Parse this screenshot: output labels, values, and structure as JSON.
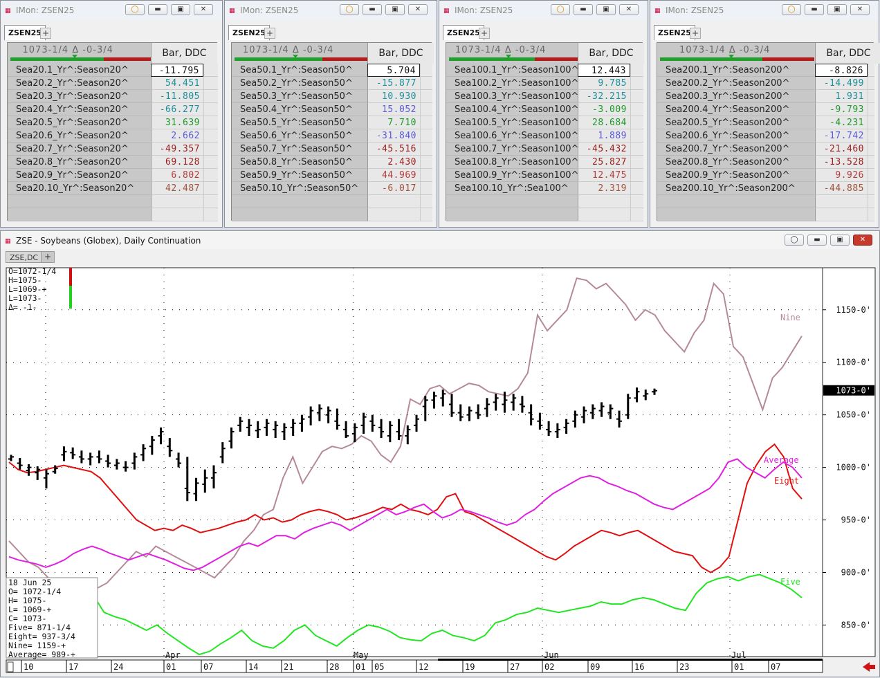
{
  "monitors": [
    {
      "title": "IMon: ZSEN25",
      "tab": "ZSEN25",
      "price": "1073-1/4 Δ -0-3/4",
      "col": "Bar, DDC",
      "rows": [
        {
          "label": "Sea20.1_Yr^:Season20^",
          "value": "-11.795",
          "color": "black"
        },
        {
          "label": "Sea20.2_Yr^:Season20^",
          "value": "54.451",
          "color": "teal"
        },
        {
          "label": "Sea20.3_Yr^:Season20^",
          "value": "-11.805",
          "color": "teal"
        },
        {
          "label": "Sea20.4_Yr^:Season20^",
          "value": "-66.277",
          "color": "teal"
        },
        {
          "label": "Sea20.5_Yr^:Season20^",
          "value": "31.639",
          "color": "green"
        },
        {
          "label": "Sea20.6_Yr^:Season20^",
          "value": "2.662",
          "color": "blue"
        },
        {
          "label": "Sea20.7_Yr^:Season20^",
          "value": "-49.357",
          "color": "red"
        },
        {
          "label": "Sea20.8_Yr^:Season20^",
          "value": "69.128",
          "color": "red"
        },
        {
          "label": "Sea20.9_Yr^:Season20^",
          "value": "6.802",
          "color": "ltred"
        },
        {
          "label": "Sea20.10_Yr^:Season20^",
          "value": "42.487",
          "color": "brown"
        }
      ]
    },
    {
      "title": "IMon: ZSEN25",
      "tab": "ZSEN25",
      "price": "1073-1/4 Δ -0-3/4",
      "col": "Bar, DDC",
      "rows": [
        {
          "label": "Sea50.1_Yr^:Season50^",
          "value": "5.704",
          "color": "black"
        },
        {
          "label": "Sea50.2_Yr^:Season50^",
          "value": "-15.877",
          "color": "teal"
        },
        {
          "label": "Sea50.3_Yr^:Season50^",
          "value": "10.930",
          "color": "teal"
        },
        {
          "label": "Sea50.4_Yr^:Season50^",
          "value": "15.052",
          "color": "blue"
        },
        {
          "label": "Sea50.5_Yr^:Season50^",
          "value": "7.710",
          "color": "green"
        },
        {
          "label": "Sea50.6_Yr^:Season50^",
          "value": "-31.840",
          "color": "blue"
        },
        {
          "label": "Sea50.7_Yr^:Season50^",
          "value": "-45.516",
          "color": "red"
        },
        {
          "label": "Sea50.8_Yr^:Season50^",
          "value": "2.430",
          "color": "red"
        },
        {
          "label": "Sea50.9_Yr^:Season50^",
          "value": "44.969",
          "color": "ltred"
        },
        {
          "label": "Sea50.10_Yr^:Season50^",
          "value": "-6.017",
          "color": "brown"
        }
      ]
    },
    {
      "title": "IMon: ZSEN25",
      "tab": "ZSEN25",
      "price": "1073-1/4 Δ -0-3/4",
      "col": "Bar, DDC",
      "rows": [
        {
          "label": "Sea100.1_Yr^:Season100^",
          "value": "12.443",
          "color": "black"
        },
        {
          "label": "Sea100.2_Yr^:Season100^",
          "value": "9.785",
          "color": "teal"
        },
        {
          "label": "Sea100.3_Yr^:Season100^",
          "value": "-32.215",
          "color": "teal"
        },
        {
          "label": "Sea100.4_Yr^:Season100^",
          "value": "-3.009",
          "color": "green"
        },
        {
          "label": "Sea100.5_Yr^:Season100^",
          "value": "28.684",
          "color": "green"
        },
        {
          "label": "Sea100.6_Yr^:Season100^",
          "value": "1.889",
          "color": "blue"
        },
        {
          "label": "Sea100.7_Yr^:Season100^",
          "value": "-45.432",
          "color": "red"
        },
        {
          "label": "Sea100.8_Yr^:Season100^",
          "value": "25.827",
          "color": "red"
        },
        {
          "label": "Sea100.9_Yr^:Season100^",
          "value": "12.475",
          "color": "ltred"
        },
        {
          "label": "Sea100.10_Yr^:Sea100^",
          "value": "2.319",
          "color": "brown"
        }
      ]
    },
    {
      "title": "IMon: ZSEN25",
      "tab": "ZSEN25",
      "price": "1073-1/4 Δ -0-3/4",
      "col": "Bar, DDC",
      "rows": [
        {
          "label": "Sea200.1_Yr^:Season200^",
          "value": "-8.826",
          "color": "black"
        },
        {
          "label": "Sea200.2_Yr^:Season200^",
          "value": "-14.499",
          "color": "teal"
        },
        {
          "label": "Sea200.3_Yr^:Season200^",
          "value": "1.931",
          "color": "teal"
        },
        {
          "label": "Sea200.4_Yr^:Season200^",
          "value": "-9.793",
          "color": "green"
        },
        {
          "label": "Sea200.5_Yr^:Season200^",
          "value": "-4.231",
          "color": "green"
        },
        {
          "label": "Sea200.6_Yr^:Season200^",
          "value": "-17.742",
          "color": "blue"
        },
        {
          "label": "Sea200.7_Yr^:Season200^",
          "value": "-21.460",
          "color": "red"
        },
        {
          "label": "Sea200.8_Yr^:Season200^",
          "value": "-13.528",
          "color": "red"
        },
        {
          "label": "Sea200.9_Yr^:Season200^",
          "value": "9.926",
          "color": "ltred"
        },
        {
          "label": "Sea200.10_Yr^:Season200^",
          "value": "-44.885",
          "color": "brown"
        }
      ]
    }
  ],
  "chart_window": {
    "title": "ZSE - Soybeans (Globex), Daily Continuation",
    "tab": "ZSE,DC",
    "plus": "+",
    "ohlc_box": [
      "O=1072-1/4",
      "H=1075-",
      "L=1069-+",
      "L=1073-",
      "Δ=  -1-"
    ],
    "info_box": [
      "18 Jun 25",
      "O=      1072-1/4",
      "H=      1075-",
      "L=      1069-+",
      "C=      1073-",
      "Five=     871-1/4",
      "Eight=    937-3/4",
      "Nine=    1159-+",
      "Average= 989-+"
    ],
    "last_price_label": "1073-0'"
  },
  "colors": {
    "price": "#000000",
    "five": "#22e622",
    "eight": "#e01010",
    "nine": "#b58a98",
    "average": "#e020e0",
    "accent_red": "#d31111"
  },
  "chart_data": {
    "type": "line",
    "ylim": [
      820,
      1190
    ],
    "y_ticks": [
      "850-0'",
      "900-0'",
      "950-0'",
      "1000-0'",
      "1050-0'",
      "1100-0'",
      "1150-0'"
    ],
    "y_tick_values": [
      850,
      900,
      950,
      1000,
      1050,
      1100,
      1150
    ],
    "x_month_labels": [
      "Apr",
      "May",
      "Jun",
      "Jul"
    ],
    "x_day_labels": [
      "10",
      "17",
      "24",
      "01",
      "07",
      "14",
      "21",
      "28",
      "01",
      "05",
      "12",
      "19",
      "27",
      "02",
      "09",
      "16",
      "23",
      "01",
      "07"
    ],
    "series_labels": {
      "nine": "Nine",
      "average": "Average",
      "eight": "Eight",
      "five": "Five"
    },
    "price_bars": [
      [
        1008,
        1012,
        1006,
        1010
      ],
      [
        1004,
        1009,
        998,
        1002
      ],
      [
        997,
        1003,
        992,
        1000
      ],
      [
        995,
        1001,
        988,
        998
      ],
      [
        990,
        998,
        980,
        994
      ],
      [
        996,
        1002,
        994,
        999
      ],
      [
        1012,
        1020,
        1006,
        1015
      ],
      [
        1014,
        1019,
        1008,
        1012
      ],
      [
        1010,
        1016,
        1004,
        1008
      ],
      [
        1008,
        1014,
        1002,
        1010
      ],
      [
        1010,
        1016,
        1004,
        1008
      ],
      [
        1006,
        1012,
        1000,
        1004
      ],
      [
        1002,
        1008,
        998,
        1004
      ],
      [
        1000,
        1006,
        996,
        1000
      ],
      [
        1004,
        1014,
        998,
        1010
      ],
      [
        1012,
        1022,
        1006,
        1018
      ],
      [
        1020,
        1030,
        1012,
        1026
      ],
      [
        1030,
        1038,
        1022,
        1034
      ],
      [
        1020,
        1028,
        1010,
        1016
      ],
      [
        1008,
        1014,
        1000,
        1004
      ],
      [
        980,
        1010,
        968,
        976
      ],
      [
        975,
        990,
        968,
        985
      ],
      [
        984,
        998,
        976,
        990
      ],
      [
        990,
        1002,
        980,
        995
      ],
      [
        1010,
        1024,
        1004,
        1018
      ],
      [
        1025,
        1038,
        1018,
        1034
      ],
      [
        1040,
        1048,
        1034,
        1044
      ],
      [
        1038,
        1046,
        1030,
        1040
      ],
      [
        1035,
        1044,
        1028,
        1036
      ],
      [
        1038,
        1046,
        1030,
        1042
      ],
      [
        1036,
        1044,
        1028,
        1040
      ],
      [
        1034,
        1042,
        1026,
        1038
      ],
      [
        1038,
        1046,
        1030,
        1042
      ],
      [
        1042,
        1050,
        1034,
        1046
      ],
      [
        1048,
        1058,
        1040,
        1054
      ],
      [
        1052,
        1060,
        1044,
        1056
      ],
      [
        1050,
        1058,
        1042,
        1054
      ],
      [
        1044,
        1056,
        1036,
        1040
      ],
      [
        1036,
        1044,
        1028,
        1030
      ],
      [
        1032,
        1042,
        1024,
        1038
      ],
      [
        1040,
        1052,
        1032,
        1048
      ],
      [
        1044,
        1050,
        1034,
        1040
      ],
      [
        1038,
        1046,
        1028,
        1034
      ],
      [
        1030,
        1044,
        1024,
        1040
      ],
      [
        1034,
        1046,
        1026,
        1030
      ],
      [
        1030,
        1040,
        1022,
        1036
      ],
      [
        1040,
        1050,
        1034,
        1046
      ],
      [
        1058,
        1068,
        1044,
        1064
      ],
      [
        1064,
        1072,
        1056,
        1068
      ],
      [
        1066,
        1074,
        1058,
        1070
      ],
      [
        1060,
        1070,
        1048,
        1052
      ],
      [
        1052,
        1060,
        1044,
        1048
      ],
      [
        1050,
        1058,
        1044,
        1054
      ],
      [
        1052,
        1060,
        1046,
        1050
      ],
      [
        1056,
        1066,
        1048,
        1060
      ],
      [
        1062,
        1070,
        1054,
        1066
      ],
      [
        1060,
        1072,
        1052,
        1064
      ],
      [
        1062,
        1070,
        1054,
        1066
      ],
      [
        1060,
        1068,
        1052,
        1058
      ],
      [
        1052,
        1060,
        1040,
        1046
      ],
      [
        1044,
        1052,
        1036,
        1040
      ],
      [
        1036,
        1044,
        1030,
        1034
      ],
      [
        1034,
        1042,
        1028,
        1036
      ],
      [
        1038,
        1046,
        1032,
        1042
      ],
      [
        1044,
        1054,
        1038,
        1050
      ],
      [
        1048,
        1058,
        1042,
        1054
      ],
      [
        1052,
        1060,
        1046,
        1056
      ],
      [
        1054,
        1062,
        1048,
        1058
      ],
      [
        1052,
        1060,
        1046,
        1056
      ],
      [
        1046,
        1054,
        1038,
        1044
      ],
      [
        1050,
        1070,
        1046,
        1066
      ],
      [
        1066,
        1076,
        1062,
        1072
      ],
      [
        1068,
        1074,
        1064,
        1070
      ],
      [
        1072,
        1075,
        1069,
        1073
      ]
    ],
    "series": [
      {
        "key": "nine",
        "values": [
          930,
          920,
          910,
          905,
          895,
          888,
          880,
          875,
          880,
          885,
          890,
          900,
          910,
          920,
          915,
          925,
          920,
          915,
          910,
          905,
          900,
          895,
          905,
          915,
          930,
          940,
          955,
          960,
          990,
          1010,
          985,
          1000,
          1015,
          1020,
          1018,
          1022,
          1030,
          1025,
          1012,
          1005,
          1020,
          1065,
          1060,
          1075,
          1078,
          1070,
          1075,
          1080,
          1078,
          1072,
          1070,
          1068,
          1075,
          1090,
          1145,
          1130,
          1140,
          1150,
          1180,
          1178,
          1170,
          1175,
          1165,
          1155,
          1140,
          1150,
          1145,
          1130,
          1120,
          1110,
          1128,
          1140,
          1175,
          1165,
          1115,
          1105,
          1080,
          1055,
          1085,
          1095,
          1110,
          1125
        ]
      },
      {
        "key": "eight",
        "values": [
          1005,
          998,
          995,
          996,
          998,
          1000,
          1002,
          1000,
          998,
          996,
          990,
          980,
          970,
          960,
          950,
          945,
          940,
          942,
          940,
          945,
          942,
          938,
          940,
          942,
          945,
          948,
          950,
          955,
          950,
          952,
          948,
          950,
          955,
          958,
          960,
          958,
          955,
          950,
          952,
          955,
          958,
          962,
          960,
          965,
          960,
          958,
          955,
          960,
          972,
          975,
          958,
          955,
          950,
          945,
          940,
          935,
          930,
          925,
          920,
          915,
          912,
          918,
          925,
          930,
          935,
          940,
          938,
          935,
          938,
          940,
          935,
          930,
          925,
          920,
          918,
          916,
          905,
          900,
          905,
          915,
          950,
          985,
          1002,
          1015,
          1022,
          1010,
          980,
          970
        ]
      },
      {
        "key": "average",
        "values": [
          915,
          912,
          910,
          908,
          905,
          908,
          912,
          918,
          922,
          925,
          922,
          918,
          915,
          912,
          915,
          918,
          915,
          912,
          908,
          904,
          902,
          905,
          910,
          915,
          920,
          925,
          928,
          925,
          930,
          935,
          935,
          932,
          938,
          942,
          945,
          948,
          945,
          940,
          945,
          950,
          955,
          960,
          955,
          958,
          962,
          965,
          958,
          952,
          955,
          960,
          958,
          955,
          952,
          948,
          945,
          948,
          955,
          960,
          968,
          975,
          980,
          985,
          990,
          992,
          990,
          985,
          982,
          978,
          975,
          970,
          965,
          962,
          960,
          965,
          970,
          975,
          980,
          990,
          1005,
          1008,
          1000,
          995,
          990,
          998,
          1005,
          1000,
          990
        ]
      },
      {
        "key": "five",
        "values": [
          840,
          860,
          880,
          885,
          882,
          880,
          884,
          886,
          878,
          862,
          858,
          855,
          850,
          845,
          850,
          842,
          835,
          828,
          822,
          825,
          832,
          838,
          845,
          835,
          830,
          828,
          835,
          845,
          850,
          840,
          835,
          830,
          838,
          845,
          850,
          848,
          844,
          838,
          836,
          835,
          842,
          845,
          840,
          838,
          835,
          840,
          852,
          855,
          860,
          862,
          866,
          864,
          862,
          864,
          866,
          868,
          872,
          870,
          870,
          874,
          876,
          874,
          870,
          866,
          864,
          880,
          890,
          894,
          896,
          892,
          896,
          898,
          894,
          890,
          884,
          876
        ]
      }
    ]
  }
}
